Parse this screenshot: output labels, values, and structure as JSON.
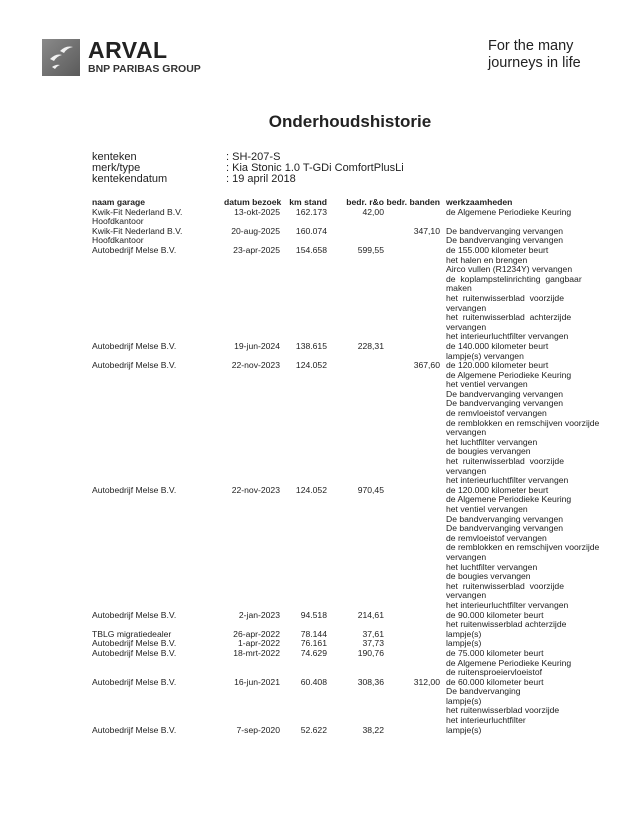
{
  "header": {
    "brand": "ARVAL",
    "brand_sub": "BNP PARIBAS GROUP",
    "slogan": [
      "For the many",
      "journeys in life"
    ]
  },
  "title": "Onderhoudshistorie",
  "vehicle": [
    {
      "label": "kenteken",
      "value": ": SH-207-S"
    },
    {
      "label": "merk/type",
      "value": ": Kia Stonic 1.0 T-GDi ComfortPlusLi"
    },
    {
      "label": "kentekendatum",
      "value": ": 19 april 2018"
    }
  ],
  "table": {
    "columns": [
      "naam garage",
      "datum bezoek",
      "km stand",
      "bedr. r&o",
      "bedr. banden",
      "werkzaamheden"
    ],
    "rows": [
      {
        "garage": [
          "Kwik-Fit Nederland B.V.",
          "Hoofdkantoor"
        ],
        "date": "13-okt-2025",
        "km": "162.173",
        "ro": "42,00",
        "banden": "",
        "work": [
          "de Algemene Periodieke Keuring"
        ]
      },
      {
        "garage": [
          "Kwik-Fit Nederland B.V.",
          "Hoofdkantoor"
        ],
        "date": "20-aug-2025",
        "km": "160.074",
        "ro": "",
        "banden": "347,10",
        "work": [
          "De bandvervanging vervangen",
          "De bandvervanging vervangen"
        ]
      },
      {
        "garage": [
          "Autobedrijf Melse B.V."
        ],
        "date": "23-apr-2025",
        "km": "154.658",
        "ro": "599,55",
        "banden": "",
        "work": [
          "de 155.000 kilometer beurt",
          "het halen en brengen",
          "Airco vullen (R1234Y) vervangen",
          "de  koplampstelinrichting  gangbaar",
          "maken",
          "het  ruitenwisserblad  voorzijde",
          "vervangen",
          "het  ruitenwisserblad  achterzijde",
          "vervangen",
          "het interieurluchtfilter vervangen"
        ]
      },
      {
        "garage": [
          "Autobedrijf Melse B.V."
        ],
        "date": "19-jun-2024",
        "km": "138.615",
        "ro": "228,31",
        "banden": "",
        "work": [
          "de 140.000 kilometer beurt",
          "lampje(s) vervangen"
        ]
      },
      {
        "garage": [
          "Autobedrijf Melse B.V."
        ],
        "date": "22-nov-2023",
        "km": "124.052",
        "ro": "",
        "banden": "367,60",
        "work": [
          "de 120.000 kilometer beurt",
          "de Algemene Periodieke Keuring",
          "het ventiel vervangen",
          "De bandvervanging vervangen",
          "De bandvervanging vervangen",
          "de remvloeistof vervangen",
          "de remblokken en remschijven voorzijde",
          "vervangen",
          "het luchtfilter vervangen",
          "de bougies vervangen",
          "het  ruitenwisserblad  voorzijde",
          "vervangen",
          "het interieurluchtfilter vervangen"
        ]
      },
      {
        "garage": [
          "Autobedrijf Melse B.V."
        ],
        "date": "22-nov-2023",
        "km": "124.052",
        "ro": "970,45",
        "banden": "",
        "work": [
          "de 120.000 kilometer beurt",
          "de Algemene Periodieke Keuring",
          "het ventiel vervangen",
          "De bandvervanging vervangen",
          "De bandvervanging vervangen",
          "de remvloeistof vervangen",
          "de remblokken en remschijven voorzijde",
          "vervangen",
          "het luchtfilter vervangen",
          "de bougies vervangen",
          "het  ruitenwisserblad  voorzijde",
          "vervangen",
          "het interieurluchtfilter vervangen"
        ]
      },
      {
        "garage": [
          "Autobedrijf Melse B.V."
        ],
        "date": "2-jan-2023",
        "km": "94.518",
        "ro": "214,61",
        "banden": "",
        "work": [
          "de 90.000 kilometer beurt",
          "het ruitenwisserblad achterzijde"
        ]
      },
      {
        "garage": [
          "TBLG migratiedealer"
        ],
        "date": "26-apr-2022",
        "km": "78.144",
        "ro": "37,61",
        "banden": "",
        "work": [
          "lampje(s)"
        ]
      },
      {
        "garage": [
          "Autobedrijf Melse B.V."
        ],
        "date": "1-apr-2022",
        "km": "76.161",
        "ro": "37,73",
        "banden": "",
        "work": [
          "lampje(s)"
        ]
      },
      {
        "garage": [
          "Autobedrijf Melse B.V."
        ],
        "date": "18-mrt-2022",
        "km": "74.629",
        "ro": "190,76",
        "banden": "",
        "work": [
          "de 75.000 kilometer beurt",
          "de Algemene Periodieke Keuring",
          "de ruitensproeiervloeistof"
        ]
      },
      {
        "garage": [
          "Autobedrijf Melse B.V."
        ],
        "date": "16-jun-2021",
        "km": "60.408",
        "ro": "308,36",
        "banden": "312,00",
        "work": [
          "de 60.000 kilometer beurt",
          "De bandvervanging",
          "lampje(s)",
          "het ruitenwisserblad voorzijde",
          "het interieurluchtfilter"
        ]
      },
      {
        "garage": [
          "Autobedrijf Melse B.V."
        ],
        "date": "7-sep-2020",
        "km": "52.622",
        "ro": "38,22",
        "banden": "",
        "work": [
          "lampje(s)"
        ]
      }
    ]
  }
}
